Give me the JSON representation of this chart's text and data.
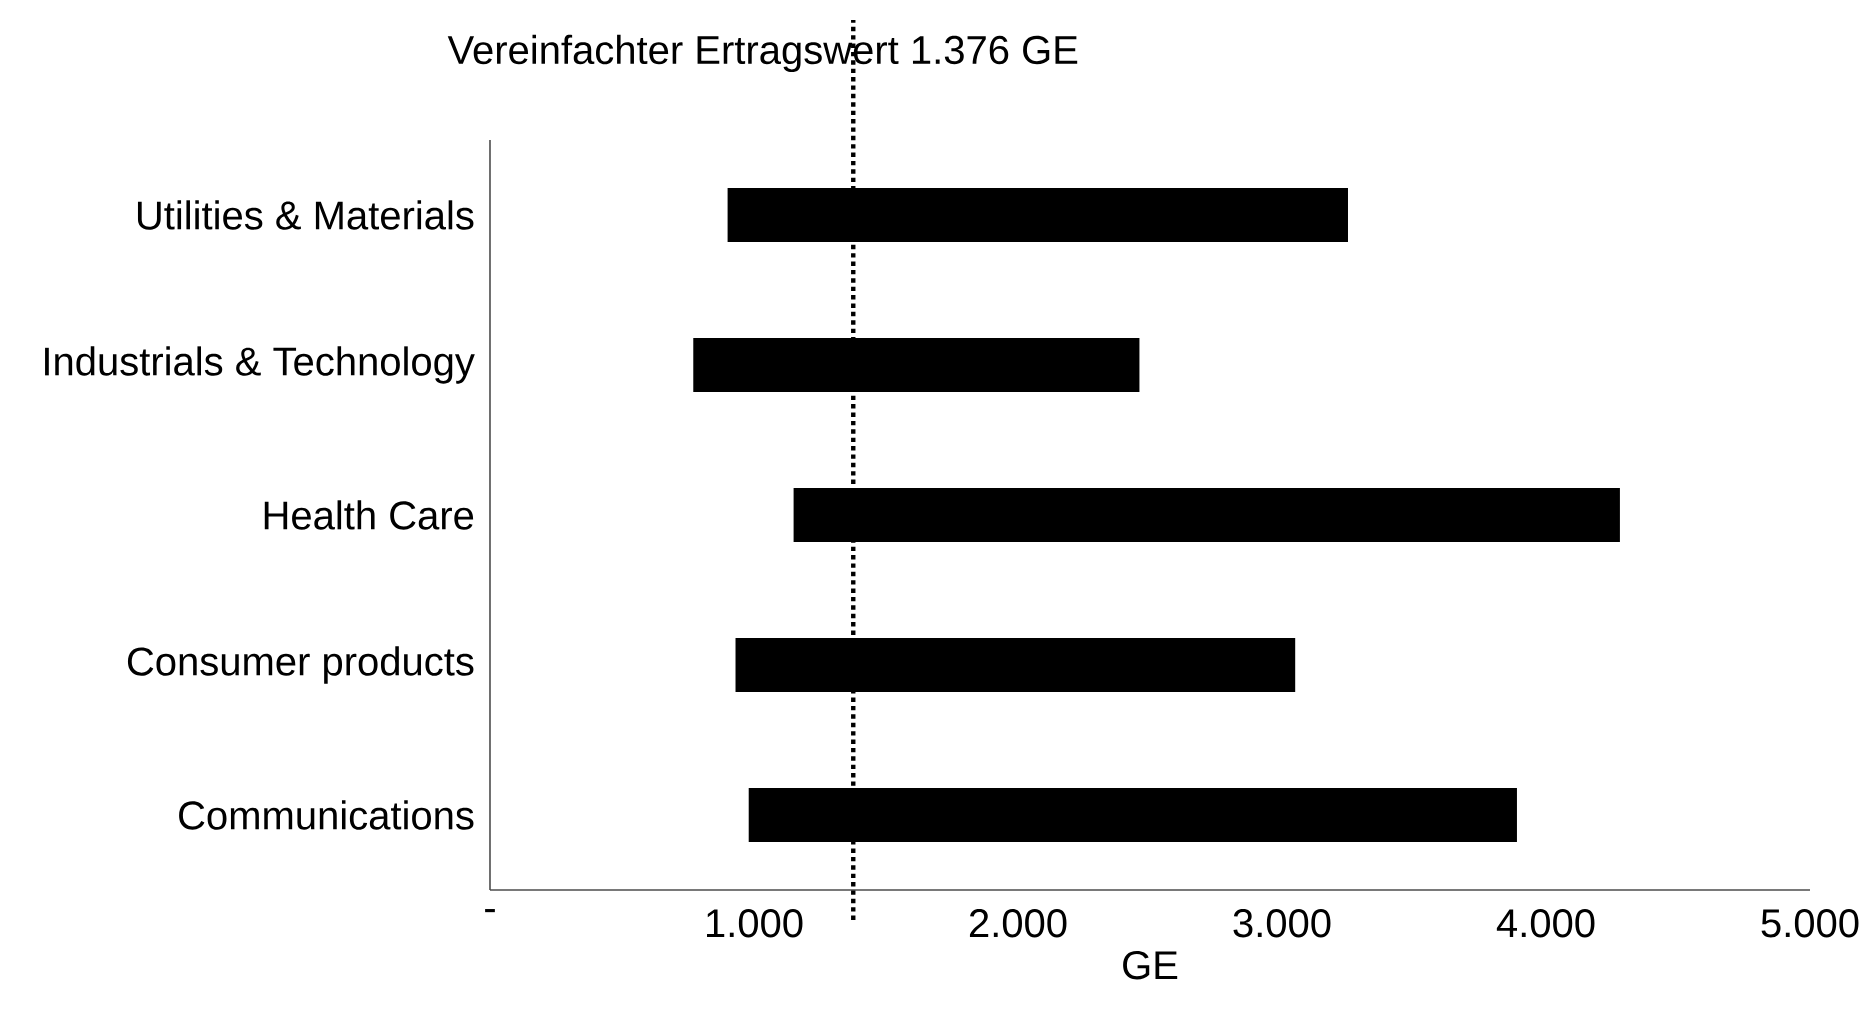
{
  "chart_data": {
    "type": "bar",
    "orientation": "horizontal",
    "xlabel": "GE",
    "categories": [
      "Utilities & Materials",
      "Industrials & Technology",
      "Health Care",
      "Consumer products",
      "Communications"
    ],
    "base": [
      900,
      770,
      1150,
      930,
      980
    ],
    "values": [
      2350,
      1690,
      3130,
      2120,
      2910
    ],
    "color": "#000000",
    "xlim": [
      0,
      5000
    ],
    "xticks": [
      {
        "value": 0,
        "label": "-"
      },
      {
        "value": 1000,
        "label": "1.000"
      },
      {
        "value": 2000,
        "label": "2.000"
      },
      {
        "value": 3000,
        "label": "3.000"
      },
      {
        "value": 4000,
        "label": "4.000"
      },
      {
        "value": 5000,
        "label": "5.000"
      }
    ],
    "ref_lines": [
      {
        "axis": "x",
        "value": 1376,
        "label": "Vereinfachter Ertragswert 1.376 GE",
        "color": "#000000",
        "line_style": "dotted"
      }
    ],
    "grid": false
  }
}
